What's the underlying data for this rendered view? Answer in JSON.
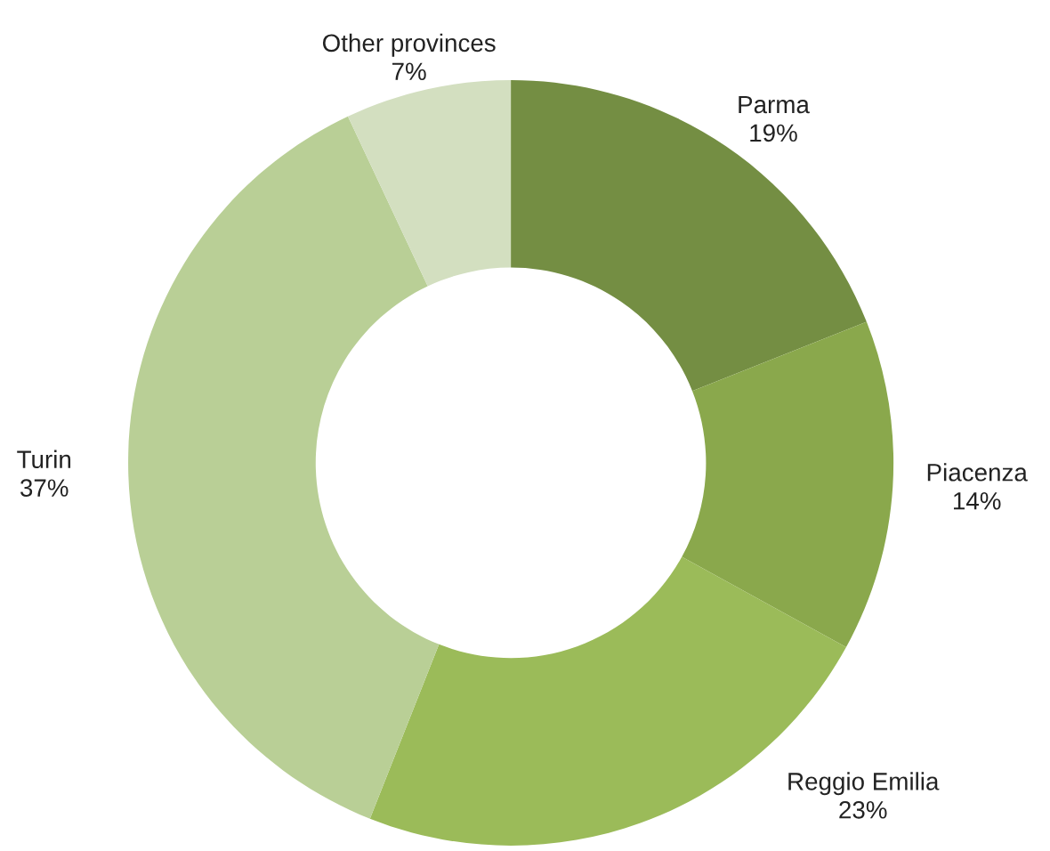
{
  "chart_data": {
    "type": "donut",
    "categories": [
      "Parma",
      "Piacenza",
      "Reggio Emilia",
      "Turin",
      "Other provinces"
    ],
    "values": [
      19,
      14,
      23,
      37,
      7
    ],
    "colors": [
      "#748e43",
      "#8aa84c",
      "#9bbb59",
      "#b9cf96",
      "#d3dfc0"
    ],
    "value_labels": [
      "19%",
      "14%",
      "23%",
      "37%",
      "7%"
    ],
    "legend": false
  }
}
